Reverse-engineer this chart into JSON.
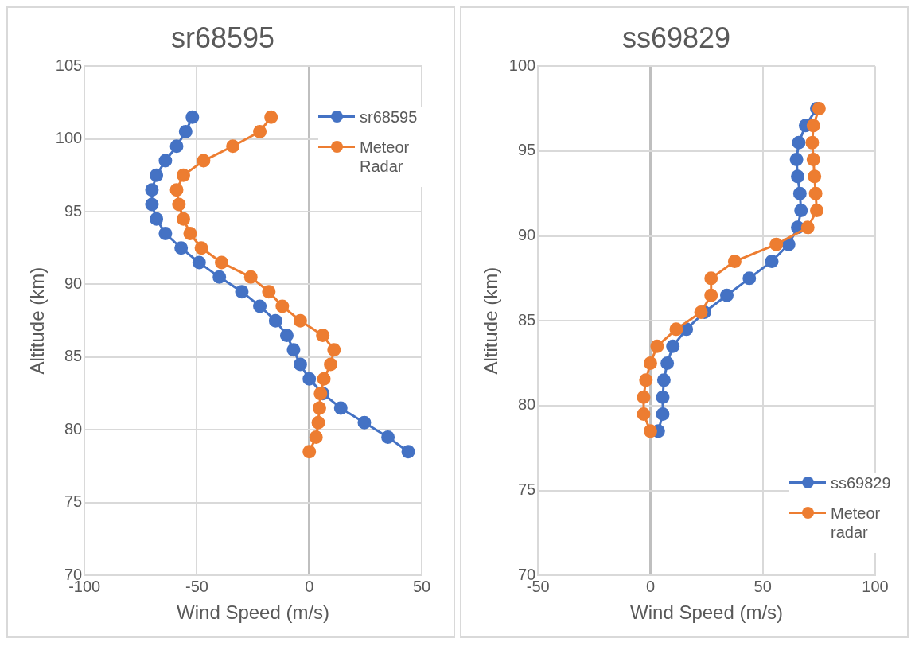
{
  "chart_data": [
    {
      "type": "line",
      "title": "sr68595",
      "xlabel": "Wind Speed (m/s)",
      "ylabel": "Altitude (km)",
      "xlim": [
        -100,
        50
      ],
      "xticks": [
        -100,
        -50,
        0,
        50
      ],
      "ylim": [
        70,
        105
      ],
      "yticks": [
        70,
        75,
        80,
        85,
        90,
        95,
        100,
        105
      ],
      "grid": true,
      "legend": "top right",
      "marker": "circle",
      "series": [
        {
          "name": "sr68595",
          "color": "#4472c4",
          "x": [
            -52,
            -55,
            -59,
            -64,
            -68,
            -70,
            -70,
            -68,
            -64,
            -57,
            -49,
            -40,
            -30,
            -22,
            -15,
            -10,
            -7,
            -4,
            0,
            6,
            14,
            24.5,
            35,
            44
          ],
          "values": [
            101.5,
            100.5,
            99.5,
            98.5,
            97.5,
            96.5,
            95.5,
            94.5,
            93.5,
            92.5,
            91.5,
            90.5,
            89.5,
            88.5,
            87.5,
            86.5,
            85.5,
            84.5,
            83.5,
            82.5,
            81.5,
            80.5,
            79.5,
            78.5
          ]
        },
        {
          "name": "Meteor Radar",
          "color": "#ed7d31",
          "x": [
            -17,
            -22,
            -34,
            -47,
            -56,
            -59,
            -58,
            -56,
            -53,
            -48,
            -39,
            -26,
            -18,
            -12,
            -4,
            6,
            11,
            9.5,
            6.5,
            5,
            4.5,
            4,
            3,
            0
          ],
          "values": [
            101.5,
            100.5,
            99.5,
            98.5,
            97.5,
            96.5,
            95.5,
            94.5,
            93.5,
            92.5,
            91.5,
            90.5,
            89.5,
            88.5,
            87.5,
            86.5,
            85.5,
            84.5,
            83.5,
            82.5,
            81.5,
            80.5,
            79.5,
            78.5
          ]
        }
      ]
    },
    {
      "type": "line",
      "title": "ss69829",
      "xlabel": "Wind Speed (m/s)",
      "ylabel": "Altitude (km)",
      "xlim": [
        -50,
        100
      ],
      "xticks": [
        -50,
        0,
        50,
        100
      ],
      "ylim": [
        70,
        100
      ],
      "yticks": [
        70,
        75,
        80,
        85,
        90,
        95,
        100
      ],
      "grid": true,
      "legend": "bottom right",
      "marker": "circle",
      "series": [
        {
          "name": "ss69829",
          "color": "#4472c4",
          "x": [
            74,
            69,
            66,
            65,
            65.5,
            66.5,
            67,
            65.5,
            61.5,
            54,
            44,
            34,
            24,
            16,
            10,
            7.5,
            6,
            5.5,
            5.5,
            3.5
          ],
          "values": [
            97.5,
            96.5,
            95.5,
            94.5,
            93.5,
            92.5,
            91.5,
            90.5,
            89.5,
            88.5,
            87.5,
            86.5,
            85.5,
            84.5,
            83.5,
            82.5,
            81.5,
            80.5,
            79.5,
            78.5
          ]
        },
        {
          "name": "Meteor radar",
          "color": "#ed7d31",
          "x": [
            75,
            72.5,
            72,
            72.5,
            73,
            73.5,
            74,
            70,
            56,
            37.5,
            27,
            27,
            22.5,
            11.5,
            3,
            0,
            -2,
            -3,
            -3,
            0
          ],
          "values": [
            97.5,
            96.5,
            95.5,
            94.5,
            93.5,
            92.5,
            91.5,
            90.5,
            89.5,
            88.5,
            87.5,
            86.5,
            85.5,
            84.5,
            83.5,
            82.5,
            81.5,
            80.5,
            79.5,
            78.5
          ]
        }
      ]
    }
  ]
}
